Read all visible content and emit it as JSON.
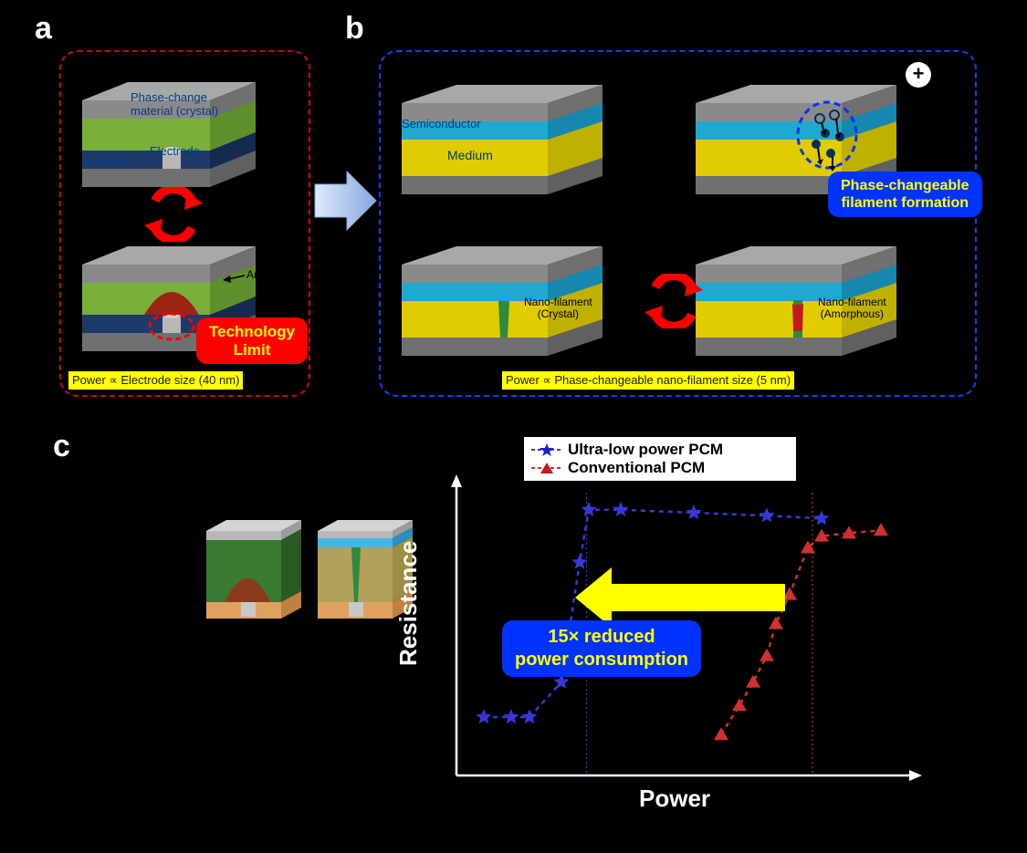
{
  "panels": {
    "a": {
      "letter": "a",
      "border_color": "#cc041c",
      "labels": {
        "pcm": "Phase-change\nmaterial (crystal)",
        "insulator": "Insulator",
        "electrode": "Electrode",
        "amorphous": "Amorphous"
      },
      "badge_text": "Technology\nLimit",
      "badge_bg": "#ff0000",
      "caption": "Power ∝ Electrode size (40 nm)",
      "colors": {
        "top_grey": "#8a8a8a",
        "pcm_green": "#9ccf4f",
        "insulator_blue": "#2b4f8f",
        "bottom_grey": "#8a8a8a",
        "amorphous_red": "#a01810"
      }
    },
    "b": {
      "letter": "b",
      "border_color": "#0048ff",
      "labels": {
        "semiconductor": "Semiconductor",
        "medium": "Medium",
        "nano_crystal": "Nano-filament\n(Crystal)",
        "nano_amorphous": "Nano-filament\n(Amorphous)"
      },
      "badge_text": "Phase-changeable\nfilament formation",
      "badge_bg": "#0033ff",
      "caption": "Power ∝ Phase-changeable nano-filament size (5 nm)",
      "plus_sign": "+",
      "colors": {
        "top_grey": "#8a8a8a",
        "semiconductor_cyan": "#2fc4ef",
        "medium_yellow": "#ffe900",
        "bottom_grey": "#8a8a8a",
        "filament_green": "#2e8a3f",
        "filament_red": "#c21a1a"
      }
    },
    "c": {
      "letter": "c",
      "legend": {
        "s1": {
          "label": "Ultra-low power PCM",
          "color": "#2020c8",
          "marker": "star"
        },
        "s2": {
          "label": "Conventional PCM",
          "color": "#c81818",
          "marker": "triangle"
        }
      },
      "badge_text": "15× reduced\npower consumption",
      "badge_bg": "#0033ff",
      "chart": {
        "type": "line-scatter",
        "xlabel": "Power",
        "ylabel": "Resistance",
        "label_fontsize": 24,
        "label_color": "#ffffff",
        "xlim": [
          0,
          10
        ],
        "ylim": [
          0,
          10
        ],
        "arrow_color": "#ffff00",
        "series": [
          {
            "name": "ultra-low",
            "color": "#3838d8",
            "marker": "star",
            "dash": "5,5",
            "points": [
              [
                0.6,
                2.0
              ],
              [
                1.2,
                2.0
              ],
              [
                1.6,
                2.0
              ],
              [
                2.3,
                3.2
              ],
              [
                2.7,
                7.3
              ],
              [
                2.9,
                9.1
              ],
              [
                3.6,
                9.1
              ],
              [
                5.2,
                9.0
              ],
              [
                6.8,
                8.9
              ],
              [
                8.0,
                8.8
              ]
            ]
          },
          {
            "name": "conventional",
            "color": "#d03030",
            "marker": "triangle",
            "dash": "5,5",
            "points": [
              [
                5.8,
                1.4
              ],
              [
                6.2,
                2.4
              ],
              [
                6.5,
                3.2
              ],
              [
                6.8,
                4.1
              ],
              [
                7.0,
                5.2
              ],
              [
                7.3,
                6.2
              ],
              [
                7.7,
                7.8
              ],
              [
                8.0,
                8.2
              ],
              [
                8.6,
                8.3
              ],
              [
                9.3,
                8.4
              ]
            ]
          }
        ],
        "vlines": [
          {
            "x": 2.85,
            "color": "#3838d8"
          },
          {
            "x": 7.8,
            "color": "#d03030"
          }
        ]
      },
      "inset_colors": {
        "left_body": "#3a7a33",
        "left_dome": "#8a3a1a",
        "left_base": "#e0a060",
        "right_body": "#ffe480",
        "right_top_cyan": "#3fb8e8",
        "right_filament": "#2e8a3f"
      }
    }
  }
}
